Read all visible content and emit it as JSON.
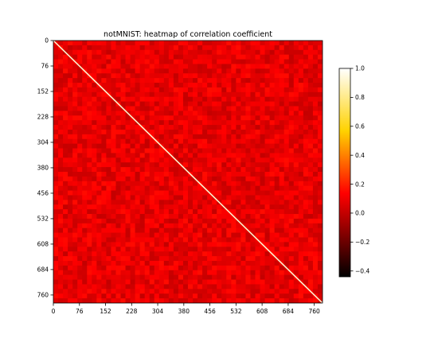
{
  "chart_data": {
    "type": "heatmap",
    "title": "notMNIST: heatmap of correlation coefficient",
    "xlabel": "",
    "ylabel": "",
    "matrix_size": 784,
    "xlim": [
      0,
      784
    ],
    "ylim": [
      0,
      784
    ],
    "x_ticks": [
      "0",
      "76",
      "152",
      "228",
      "304",
      "380",
      "456",
      "532",
      "608",
      "684",
      "760"
    ],
    "y_ticks": [
      "0",
      "76",
      "152",
      "228",
      "304",
      "380",
      "456",
      "532",
      "608",
      "684",
      "760"
    ],
    "tick_values": [
      0,
      76,
      152,
      228,
      304,
      380,
      456,
      532,
      608,
      684,
      760
    ],
    "colormap": "hot",
    "colorbar": {
      "min": -0.44,
      "max": 1.0,
      "ticks": [
        1.0,
        0.8,
        0.6,
        0.4,
        0.2,
        0.0,
        -0.2,
        -0.4
      ],
      "tick_labels": [
        "1.0",
        "0.8",
        "0.6",
        "0.4",
        "0.2",
        "0.0",
        "−0.2",
        "−0.4"
      ]
    },
    "diagonal_value": 1.0,
    "typical_offdiagonal_value": 0.08,
    "colors": {
      "cmap_stops": [
        "#000000",
        "#e60000",
        "#ff0000",
        "#ffd200",
        "#ffffff"
      ]
    }
  }
}
